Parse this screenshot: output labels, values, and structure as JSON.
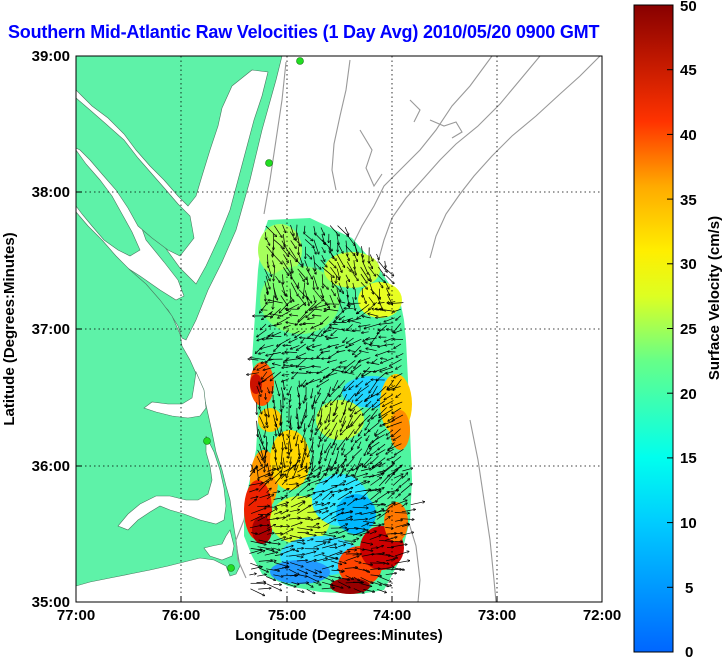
{
  "title": "Southern Mid-Atlantic Raw Velocities (1 Day Avg) 2010/05/20 0900 GMT",
  "axes": {
    "xlabel": "Longitude (Degrees:Minutes)",
    "ylabel": "Latitude (Degrees:Minutes)",
    "x_ticks": [
      "77:00",
      "76:00",
      "75:00",
      "74:00",
      "73:00",
      "72:00"
    ],
    "y_ticks": [
      "39:00",
      "38:00",
      "37:00",
      "36:00",
      "35:00"
    ]
  },
  "colorbar": {
    "label": "Surface Velocity (cm/s)",
    "min": 0,
    "max": 50,
    "ticks": [
      "50",
      "45",
      "40",
      "35",
      "30",
      "25",
      "20",
      "15",
      "10",
      "5",
      "0"
    ]
  },
  "colors": {
    "land": "#5ef2a8",
    "title": "#0000ff",
    "station": "#22dd22"
  }
}
